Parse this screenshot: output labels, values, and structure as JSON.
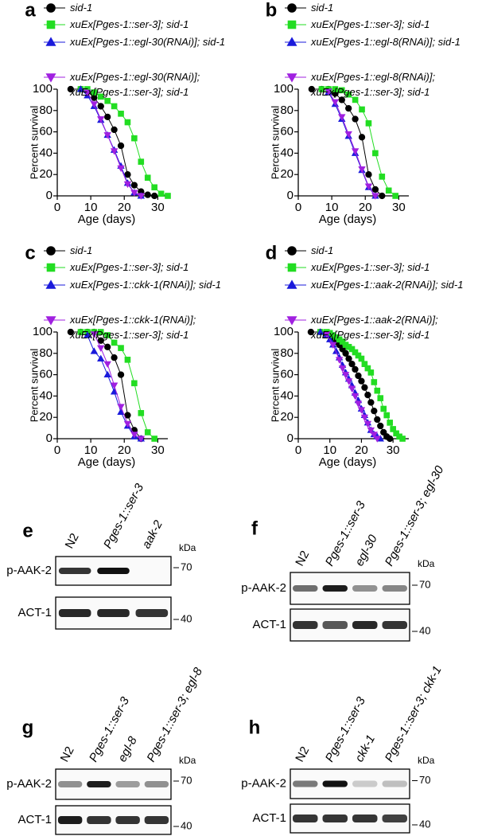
{
  "chart_data": [
    {
      "type": "line",
      "label": "a",
      "ylabel": "Percent survival",
      "xlabel": "Age (days)",
      "xlim": [
        0,
        33
      ],
      "ylim": [
        0,
        100
      ],
      "xticks": [
        0,
        10,
        20,
        30
      ],
      "yticks": [
        0,
        20,
        40,
        60,
        80,
        100
      ],
      "series": [
        {
          "name": "sid-1",
          "color": "#000000",
          "marker": "circle",
          "x": [
            4,
            7,
            9,
            11,
            13,
            15,
            17,
            19,
            21,
            23,
            25,
            27,
            29
          ],
          "values": [
            100,
            100,
            98,
            92,
            84,
            74,
            62,
            47,
            20,
            10,
            4,
            1,
            0
          ]
        },
        {
          "name": "xuEx[Pges-1::ser-3]; sid-1",
          "color": "#22dd22",
          "marker": "square",
          "x": [
            7,
            9,
            11,
            13,
            15,
            17,
            19,
            21,
            23,
            25,
            27,
            29,
            31,
            33
          ],
          "values": [
            100,
            100,
            97,
            93,
            89,
            84,
            77,
            69,
            54,
            32,
            17,
            8,
            2,
            0
          ]
        },
        {
          "name": "xuEx[Pges-1::egl-30(RNAi)]; sid-1",
          "color": "#1a1adb",
          "marker": "triangle",
          "x": [
            7,
            9,
            11,
            13,
            15,
            17,
            19,
            21,
            23,
            25
          ],
          "values": [
            100,
            94,
            84,
            71,
            57,
            43,
            28,
            12,
            3,
            0
          ]
        },
        {
          "name": "xuEx[Pges-1::egl-30(RNAi)]; xuEx[Pges-1::ser-3]; sid-1",
          "color": "#a020e0",
          "marker": "triangle-down",
          "x": [
            9,
            11,
            13,
            15,
            17,
            19,
            21,
            23,
            25
          ],
          "values": [
            97,
            86,
            72,
            57,
            42,
            26,
            11,
            3,
            0
          ]
        }
      ]
    },
    {
      "type": "line",
      "label": "b",
      "ylabel": "Percent survival",
      "xlabel": "Age (days)",
      "xlim": [
        0,
        33
      ],
      "ylim": [
        0,
        100
      ],
      "xticks": [
        0,
        10,
        20,
        30
      ],
      "yticks": [
        0,
        20,
        40,
        60,
        80,
        100
      ],
      "series": [
        {
          "name": "sid-1",
          "color": "#000000",
          "marker": "circle",
          "x": [
            4,
            7,
            9,
            11,
            13,
            15,
            17,
            19,
            21,
            23,
            25
          ],
          "values": [
            100,
            100,
            100,
            96,
            90,
            82,
            72,
            55,
            20,
            6,
            0
          ]
        },
        {
          "name": "xuEx[Pges-1::ser-3]; sid-1",
          "color": "#22dd22",
          "marker": "square",
          "x": [
            7,
            9,
            11,
            13,
            15,
            17,
            19,
            21,
            23,
            25,
            27,
            29
          ],
          "values": [
            100,
            100,
            100,
            99,
            95,
            90,
            81,
            68,
            40,
            18,
            5,
            0
          ]
        },
        {
          "name": "xuEx[Pges-1::egl-8(RNAi)]; sid-1",
          "color": "#1a1adb",
          "marker": "triangle",
          "x": [
            9,
            11,
            13,
            15,
            17,
            19,
            21,
            23
          ],
          "values": [
            97,
            86,
            72,
            56,
            40,
            24,
            8,
            0
          ]
        },
        {
          "name": "xuEx[Pges-1::egl-8(RNAi)]; xuEx[Pges-1::ser-3]; sid-1",
          "color": "#a020e0",
          "marker": "triangle-down",
          "x": [
            9,
            11,
            13,
            15,
            17,
            19,
            21,
            23
          ],
          "values": [
            98,
            88,
            74,
            58,
            42,
            25,
            9,
            0
          ]
        }
      ]
    },
    {
      "type": "line",
      "label": "c",
      "ylabel": "Percent survival",
      "xlabel": "Age (days)",
      "xlim": [
        0,
        33
      ],
      "ylim": [
        0,
        100
      ],
      "xticks": [
        0,
        10,
        20,
        30
      ],
      "yticks": [
        0,
        20,
        40,
        60,
        80,
        100
      ],
      "series": [
        {
          "name": "sid-1",
          "color": "#000000",
          "marker": "circle",
          "x": [
            4,
            7,
            9,
            11,
            13,
            15,
            17,
            19,
            21,
            23,
            25
          ],
          "values": [
            100,
            100,
            100,
            100,
            92,
            86,
            76,
            60,
            22,
            8,
            0
          ]
        },
        {
          "name": "xuEx[Pges-1::ser-3]; sid-1",
          "color": "#22dd22",
          "marker": "square",
          "x": [
            7,
            9,
            11,
            13,
            15,
            17,
            19,
            21,
            23,
            25,
            27,
            29
          ],
          "values": [
            100,
            100,
            100,
            100,
            97,
            90,
            85,
            74,
            52,
            24,
            6,
            0
          ]
        },
        {
          "name": "xuEx[Pges-1::ckk-1(RNAi)]; sid-1",
          "color": "#1a1adb",
          "marker": "triangle",
          "x": [
            9,
            11,
            13,
            15,
            17,
            19,
            21,
            23,
            25
          ],
          "values": [
            97,
            82,
            75,
            60,
            44,
            25,
            12,
            2,
            0
          ]
        },
        {
          "name": "xuEx[Pges-1::ckk-1(RNAi)]; xuEx[Pges-1::ser-3]; sid-1",
          "color": "#a020e0",
          "marker": "triangle-down",
          "x": [
            11,
            13,
            15,
            17,
            19,
            21,
            23,
            25
          ],
          "values": [
            98,
            85,
            70,
            50,
            30,
            14,
            4,
            0
          ]
        }
      ]
    },
    {
      "type": "line",
      "label": "d",
      "ylabel": "Percent survival",
      "xlabel": "Age (days)",
      "xlim": [
        0,
        35
      ],
      "ylim": [
        0,
        100
      ],
      "xticks": [
        0,
        10,
        20,
        30
      ],
      "yticks": [
        0,
        20,
        40,
        60,
        80,
        100
      ],
      "series": [
        {
          "name": "sid-1",
          "color": "#000000",
          "marker": "circle",
          "x": [
            4,
            7,
            9,
            11,
            12,
            13,
            14,
            15,
            16,
            17,
            18,
            19,
            20,
            21,
            22,
            23,
            24,
            25,
            26,
            27,
            28,
            29
          ],
          "values": [
            100,
            100,
            98,
            94,
            91,
            88,
            84,
            80,
            75,
            70,
            65,
            59,
            54,
            48,
            41,
            34,
            26,
            18,
            12,
            6,
            2,
            0
          ]
        },
        {
          "name": "xuEx[Pges-1::ser-3]; sid-1",
          "color": "#22dd22",
          "marker": "square",
          "x": [
            7,
            9,
            10,
            11,
            12,
            13,
            14,
            15,
            16,
            17,
            18,
            19,
            20,
            21,
            22,
            23,
            24,
            25,
            26,
            27,
            28,
            29,
            30,
            31,
            32,
            33
          ],
          "values": [
            100,
            100,
            99,
            97,
            95,
            93,
            91,
            88,
            86,
            84,
            81,
            78,
            75,
            70,
            66,
            62,
            53,
            45,
            38,
            28,
            22,
            15,
            9,
            5,
            2,
            0
          ]
        },
        {
          "name": "xuEx[Pges-1::aak-2(RNAi)]; sid-1",
          "color": "#1a1adb",
          "marker": "triangle",
          "x": [
            7,
            9,
            10,
            11,
            12,
            13,
            14,
            15,
            16,
            17,
            18,
            19,
            20,
            21,
            22,
            23,
            24,
            25,
            26
          ],
          "values": [
            100,
            97,
            93,
            88,
            82,
            76,
            69,
            62,
            56,
            50,
            43,
            36,
            28,
            22,
            15,
            8,
            4,
            2,
            0
          ]
        },
        {
          "name": "xuEx[Pges-1::aak-2(RNAi)]; xuEx[Pges-1::ser-3]; sid-1",
          "color": "#a020e0",
          "marker": "triangle-down",
          "x": [
            9,
            11,
            13,
            14,
            15,
            16,
            17,
            18,
            19,
            20,
            21,
            22,
            23,
            24,
            25
          ],
          "values": [
            98,
            88,
            74,
            66,
            60,
            54,
            47,
            40,
            33,
            27,
            20,
            14,
            8,
            4,
            0
          ]
        }
      ]
    }
  ],
  "blots": [
    {
      "label": "e",
      "lanes": [
        "N2",
        "Pges-1::ser-3",
        "aak-2"
      ],
      "unit": "kDa",
      "rows": [
        {
          "name": "p-AAK-2",
          "kda": 70
        },
        {
          "name": "ACT-1",
          "kda": 40
        }
      ]
    },
    {
      "label": "f",
      "lanes": [
        "N2",
        "Pges-1::ser-3",
        "egl-30",
        "Pges-1::ser-3; egl-30"
      ],
      "unit": "kDa",
      "rows": [
        {
          "name": "p-AAK-2",
          "kda": 70
        },
        {
          "name": "ACT-1",
          "kda": 40
        }
      ]
    },
    {
      "label": "g",
      "lanes": [
        "N2",
        "Pges-1::ser-3",
        "egl-8",
        "Pges-1::ser-3; egl-8"
      ],
      "unit": "kDa",
      "rows": [
        {
          "name": "p-AAK-2",
          "kda": 70
        },
        {
          "name": "ACT-1",
          "kda": 40
        }
      ]
    },
    {
      "label": "h",
      "lanes": [
        "N2",
        "Pges-1::ser-3",
        "ckk-1",
        "Pges-1::ser-3; ckk-1"
      ],
      "unit": "kDa",
      "rows": [
        {
          "name": "p-AAK-2",
          "kda": 70
        },
        {
          "name": "ACT-1",
          "kda": 40
        }
      ]
    }
  ]
}
